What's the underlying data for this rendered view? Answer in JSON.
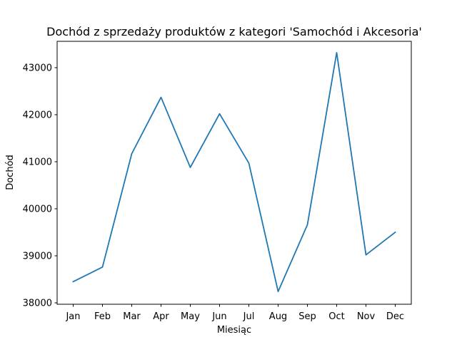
{
  "chart_data": {
    "type": "line",
    "title": "Dochód z sprzedaży produktów z kategori 'Samochód i Akcesoria'",
    "xlabel": "Miesiąc",
    "ylabel": "Dochód",
    "categories": [
      "Jan",
      "Feb",
      "Mar",
      "Apr",
      "May",
      "Jun",
      "Jul",
      "Aug",
      "Sep",
      "Oct",
      "Nov",
      "Dec"
    ],
    "series": [
      {
        "values": [
          38450,
          38760,
          41170,
          42370,
          40880,
          42020,
          40970,
          38240,
          39660,
          43320,
          39020,
          39500
        ],
        "color": "#1f77b4"
      }
    ],
    "yticks": [
      38000,
      39000,
      40000,
      41000,
      42000,
      43000
    ],
    "ylim": [
      37970,
      43560
    ],
    "grid": false,
    "legend": "none"
  }
}
